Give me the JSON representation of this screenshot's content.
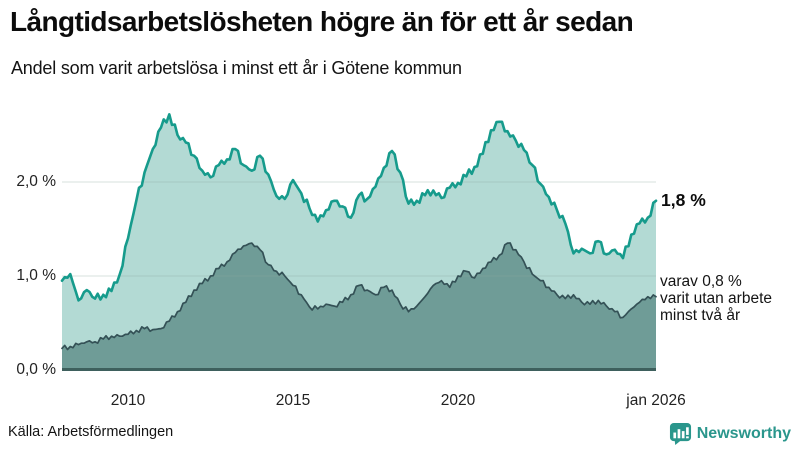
{
  "header": {
    "title": "Långtidsarbetslösheten högre än för ett år sedan",
    "subtitle": "Andel som varit arbetslösa i minst ett år i Götene kommun"
  },
  "annotations": {
    "end_value": "1,8 %",
    "secondary": [
      "varav 0,8 %",
      "varit utan arbete",
      "minst två år"
    ]
  },
  "footer": {
    "source": "Källa: Arbetsförmedlingen"
  },
  "brand": {
    "name": "Newsworthy",
    "color": "#2a968c"
  },
  "colors": {
    "grid": "#8fa8a2",
    "baseline": "#3e605d",
    "text": "#141414"
  },
  "chart_data": {
    "type": "area",
    "title": "Långtidsarbetslösheten högre än för ett år sedan",
    "subtitle": "Andel som varit arbetslösa i minst ett år i Götene kommun",
    "source": "Källa: Arbetsförmedlingen",
    "unit": "percent",
    "x_start": 2008.0,
    "x_step": 0.25,
    "x_end": 2026.0,
    "ylim": [
      0,
      2.9
    ],
    "grid": "horizontal",
    "legend": "direct labels at right edge of lines",
    "x_ticks": [
      {
        "label": "2010",
        "year": 2010
      },
      {
        "label": "2015",
        "year": 2015
      },
      {
        "label": "2020",
        "year": 2020
      },
      {
        "label": "jan 2026",
        "year": 2026
      }
    ],
    "y_ticks": [
      {
        "label": "0,0 %",
        "value": 0
      },
      {
        "label": "1,0 %",
        "value": 1
      },
      {
        "label": "2,0 %",
        "value": 2
      }
    ],
    "series": [
      {
        "name": "Andel som varit arbetslösa i minst ett år",
        "end_label": "1,8 %",
        "line_color": "#169b8c",
        "fill_color": "#b3dad4",
        "line_width": 2.6,
        "jitter": 0.04,
        "values": [
          0.95,
          1.02,
          0.74,
          0.85,
          0.76,
          0.8,
          0.84,
          1.02,
          1.4,
          1.8,
          2.1,
          2.35,
          2.58,
          2.72,
          2.5,
          2.42,
          2.28,
          2.12,
          2.05,
          2.18,
          2.24,
          2.35,
          2.18,
          2.12,
          2.28,
          2.08,
          1.85,
          1.82,
          2.02,
          1.88,
          1.72,
          1.58,
          1.7,
          1.8,
          1.74,
          1.62,
          1.86,
          1.82,
          1.95,
          2.15,
          2.33,
          2.1,
          1.77,
          1.8,
          1.86,
          1.91,
          1.83,
          1.94,
          1.99,
          2.06,
          2.16,
          2.3,
          2.55,
          2.64,
          2.54,
          2.44,
          2.34,
          2.18,
          1.98,
          1.84,
          1.7,
          1.56,
          1.24,
          1.29,
          1.24,
          1.37,
          1.23,
          1.28,
          1.19,
          1.44,
          1.56,
          1.62,
          1.8
        ]
      },
      {
        "name": "Varav utan arbete i minst två år",
        "end_label": "varav 0,8 % varit utan arbete minst två år",
        "line_color": "#345156",
        "fill_color": "#6f9c97",
        "line_width": 1.7,
        "jitter": 0.025,
        "values": [
          0.23,
          0.25,
          0.27,
          0.3,
          0.3,
          0.33,
          0.36,
          0.36,
          0.38,
          0.42,
          0.44,
          0.43,
          0.44,
          0.52,
          0.62,
          0.72,
          0.85,
          0.92,
          1.0,
          1.08,
          1.15,
          1.25,
          1.32,
          1.35,
          1.28,
          1.12,
          1.05,
          1.0,
          0.9,
          0.8,
          0.67,
          0.65,
          0.7,
          0.68,
          0.72,
          0.8,
          0.9,
          0.85,
          0.8,
          0.88,
          0.85,
          0.7,
          0.62,
          0.68,
          0.78,
          0.9,
          0.95,
          0.88,
          1.0,
          1.05,
          0.98,
          1.08,
          1.15,
          1.22,
          1.35,
          1.28,
          1.15,
          1.02,
          0.95,
          0.88,
          0.8,
          0.76,
          0.8,
          0.72,
          0.7,
          0.74,
          0.68,
          0.62,
          0.56,
          0.65,
          0.72,
          0.78,
          0.78
        ]
      }
    ]
  }
}
